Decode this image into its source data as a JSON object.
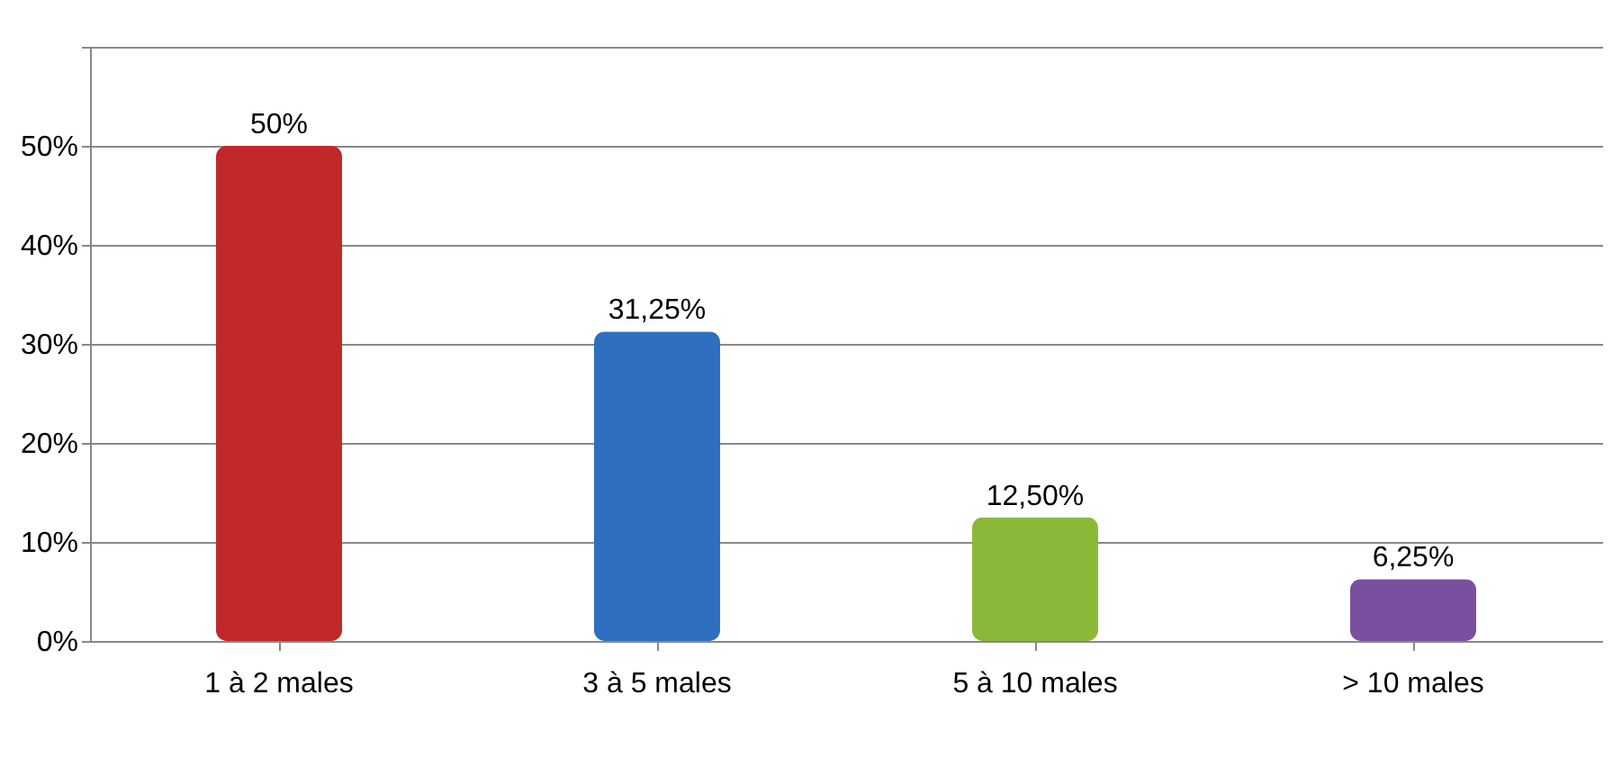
{
  "chart_data": {
    "type": "bar",
    "categories": [
      "1 à 2 males",
      "3 à 5 males",
      "5 à 10 males",
      "> 10 males"
    ],
    "values": [
      50,
      31.25,
      12.5,
      6.25
    ],
    "colors": [
      "#c0282a",
      "#2e6fc0",
      "#8cb83a",
      "#7a4fa0"
    ],
    "value_labels": [
      "50%",
      "31,25%",
      "12,50%",
      "6,25%"
    ],
    "ylim": [
      0,
      60
    ],
    "yticks": [
      {
        "value": 0,
        "label": "0%"
      },
      {
        "value": 10,
        "label": "10%"
      },
      {
        "value": 20,
        "label": "20%"
      },
      {
        "value": 30,
        "label": "30%"
      },
      {
        "value": 40,
        "label": "40%"
      },
      {
        "value": 50,
        "label": "50%"
      },
      {
        "value": 60,
        "label": null
      }
    ],
    "grid": "y"
  }
}
